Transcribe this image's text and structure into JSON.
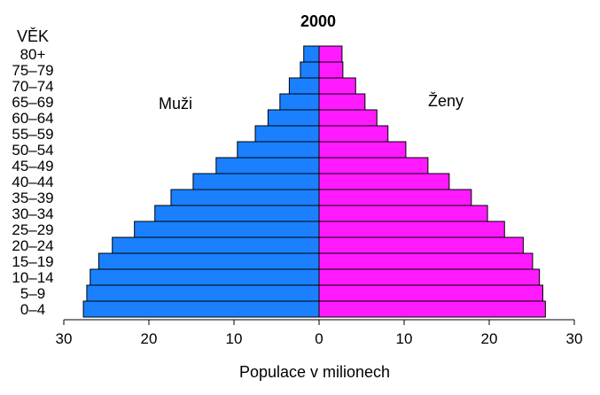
{
  "chart_data": {
    "type": "bar",
    "orientation": "horizontal",
    "layout": "population-pyramid",
    "title": "2000",
    "category_axis_label": "VĚK",
    "xlabel": "Populace  v  milionech",
    "xlim": [
      -30,
      30
    ],
    "x_tick_values": [
      -30,
      -20,
      -10,
      0,
      10,
      20,
      30
    ],
    "x_tick_labels": [
      "30",
      "20",
      "10",
      "0",
      "10",
      "20",
      "30"
    ],
    "categories": [
      "0–4",
      "5–9",
      "10–14",
      "15–19",
      "20–24",
      "25–29",
      "30–34",
      "35–39",
      "40–44",
      "45–49",
      "50–54",
      "55–59",
      "60–64",
      "65–69",
      "70–74",
      "75–79",
      "80+"
    ],
    "series": [
      {
        "name": "Muži",
        "side": "left",
        "color": "#1a80ff",
        "values": [
          27.7,
          27.3,
          26.9,
          25.9,
          24.3,
          21.7,
          19.3,
          17.4,
          14.8,
          12.1,
          9.6,
          7.5,
          6.0,
          4.6,
          3.5,
          2.2,
          1.8
        ]
      },
      {
        "name": "Ženy",
        "side": "right",
        "color": "#ff1aff",
        "values": [
          26.6,
          26.3,
          25.9,
          25.1,
          24.0,
          21.8,
          19.8,
          17.9,
          15.3,
          12.8,
          10.2,
          8.1,
          6.8,
          5.4,
          4.3,
          2.8,
          2.7
        ]
      }
    ],
    "legend": "inline labels above bars",
    "grid": false
  }
}
